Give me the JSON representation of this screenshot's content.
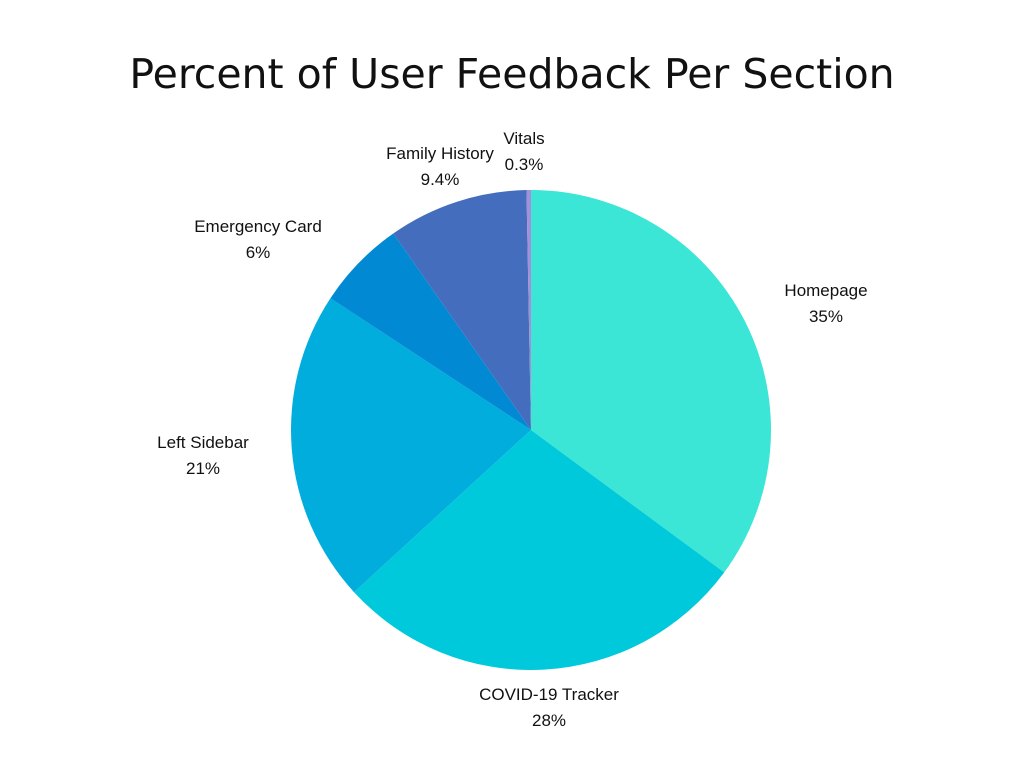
{
  "chart_data": {
    "type": "pie",
    "title": "Percent of User Feedback Per Section",
    "slices": [
      {
        "label": "Homepage",
        "value": 35,
        "display": "35%",
        "color": "#3be6d6"
      },
      {
        "label": "COVID-19 Tracker",
        "value": 28,
        "display": "28%",
        "color": "#00c9db"
      },
      {
        "label": "Left Sidebar",
        "value": 21,
        "display": "21%",
        "color": "#00addd"
      },
      {
        "label": "Emergency Card",
        "value": 6,
        "display": "6%",
        "color": "#0189d4"
      },
      {
        "label": "Family History",
        "value": 9.4,
        "display": "9.4%",
        "color": "#446dbe"
      },
      {
        "label": "Vitals",
        "value": 0.3,
        "display": "0.3%",
        "color": "#a58fd8"
      }
    ],
    "start": "12 o'clock",
    "direction": "clockwise",
    "legend": "none"
  }
}
